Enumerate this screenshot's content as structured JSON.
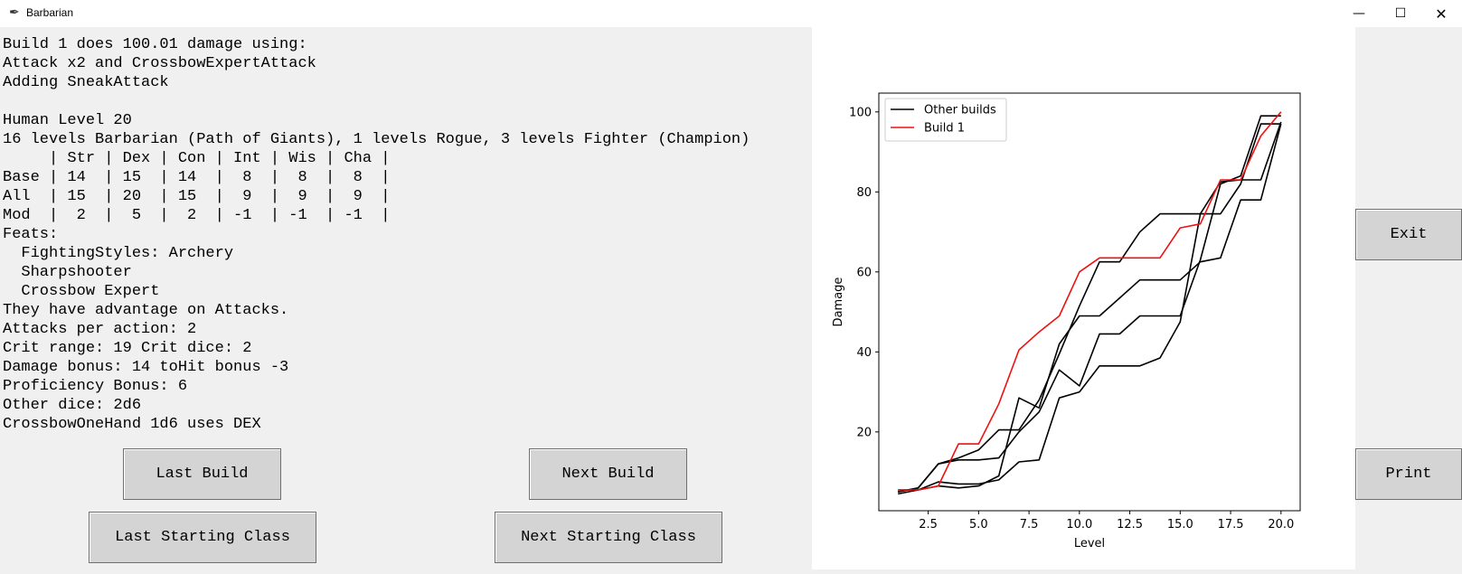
{
  "window": {
    "title": "Barbarian",
    "icon": "feather-icon",
    "controls": {
      "minimize": "—",
      "maximize": "☐",
      "close": "✕"
    }
  },
  "info_lines": [
    "Build 1 does 100.01 damage using:",
    "Attack x2 and CrossbowExpertAttack",
    "Adding SneakAttack",
    "",
    "Human Level 20",
    "16 levels Barbarian (Path of Giants), 1 levels Rogue, 3 levels Fighter (Champion)",
    "     | Str | Dex | Con | Int | Wis | Cha |",
    "Base | 14  | 15  | 14  |  8  |  8  |  8  |",
    "All  | 15  | 20  | 15  |  9  |  9  |  9  |",
    "Mod  |  2  |  5  |  2  | -1  | -1  | -1  |",
    "Feats:",
    "  FightingStyles: Archery",
    "  Sharpshooter",
    "  Crossbow Expert",
    "They have advantage on Attacks.",
    "Attacks per action: 2",
    "Crit range: 19 Crit dice: 2",
    "Damage bonus: 14 toHit bonus -3",
    "Proficiency Bonus: 6",
    "Other dice: 2d6",
    "CrossbowOneHand 1d6 uses DEX"
  ],
  "buttons": {
    "last_build": "Last Build",
    "next_build": "Next Build",
    "last_starting_class": "Last Starting Class",
    "next_starting_class": "Next Starting Class",
    "exit": "Exit",
    "print": "Print"
  },
  "chart_data": {
    "type": "line",
    "title": "",
    "xlabel": "Level",
    "ylabel": "Damage",
    "xlim": [
      0.05,
      20.95
    ],
    "ylim": [
      0.3,
      104.7
    ],
    "xticks": [
      2.5,
      5.0,
      7.5,
      10.0,
      12.5,
      15.0,
      17.5,
      20.0
    ],
    "xtick_labels": [
      "2.5",
      "5.0",
      "7.5",
      "10.0",
      "12.5",
      "15.0",
      "17.5",
      "20.0"
    ],
    "yticks": [
      20,
      40,
      60,
      80,
      100
    ],
    "ytick_labels": [
      "20",
      "40",
      "60",
      "80",
      "100"
    ],
    "grid": false,
    "legend_position": "upper-left",
    "legend": [
      {
        "label": "Other builds",
        "color": "#000000"
      },
      {
        "label": "Build 1",
        "color": "#ee1111"
      }
    ],
    "x": [
      1,
      2,
      3,
      4,
      5,
      6,
      7,
      8,
      9,
      10,
      11,
      12,
      13,
      14,
      15,
      16,
      17,
      18,
      19,
      20
    ],
    "series": [
      {
        "legend_index": 0,
        "color": "#000000",
        "values": [
          5,
          6,
          12,
          13,
          13,
          13.5,
          20,
          25,
          35.5,
          31.5,
          44.5,
          44.5,
          49,
          49,
          49,
          63,
          82,
          84,
          99,
          99
        ]
      },
      {
        "legend_index": 0,
        "color": "#000000",
        "values": [
          4.5,
          5.5,
          6.5,
          6,
          6.5,
          9,
          28.5,
          26,
          42,
          49,
          49,
          53.5,
          58,
          58,
          58,
          62.5,
          63.5,
          78,
          78,
          97
        ]
      },
      {
        "legend_index": 0,
        "color": "#000000",
        "values": [
          5.5,
          5.5,
          7.5,
          7,
          7,
          8,
          12.5,
          13,
          28.5,
          30,
          36.5,
          36.5,
          36.5,
          38.5,
          47.5,
          74.5,
          82.5,
          83,
          83,
          97.5
        ]
      },
      {
        "legend_index": 0,
        "color": "#000000",
        "values": [
          5,
          6,
          12,
          13.5,
          15.5,
          20.5,
          20.5,
          28,
          39.5,
          51.5,
          62.5,
          62.5,
          70,
          74.5,
          74.5,
          74.5,
          74.5,
          82,
          97,
          97
        ]
      },
      {
        "legend_index": 1,
        "color": "#ee1111",
        "values": [
          5.5,
          5.5,
          6.5,
          17,
          17,
          27,
          40.5,
          45,
          49,
          60,
          63.5,
          63.5,
          63.5,
          63.5,
          71,
          72,
          83,
          83,
          94,
          100
        ]
      }
    ]
  }
}
